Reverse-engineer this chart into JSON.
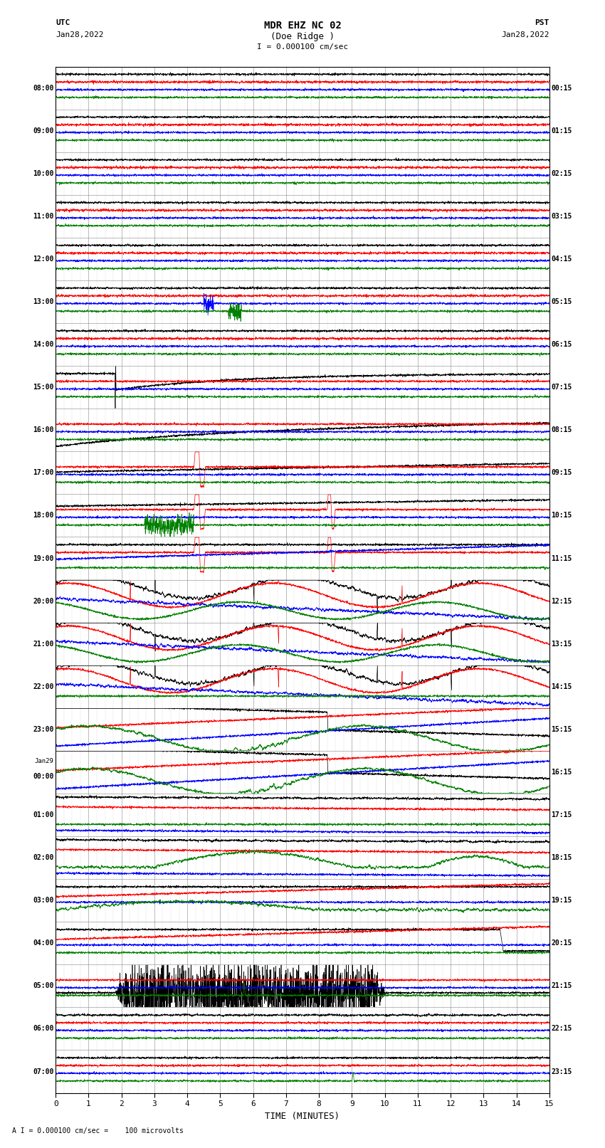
{
  "title_line1": "MDR EHZ NC 02",
  "title_line2": "(Doe Ridge )",
  "scale_label": "I = 0.000100 cm/sec",
  "bottom_label": "A I = 0.000100 cm/sec =    100 microvolts",
  "utc_label_line1": "UTC",
  "utc_label_line2": "Jan28,2022",
  "pst_label_line1": "PST",
  "pst_label_line2": "Jan28,2022",
  "xlabel": "TIME (MINUTES)",
  "left_times": [
    "08:00",
    "09:00",
    "10:00",
    "11:00",
    "12:00",
    "13:00",
    "14:00",
    "15:00",
    "16:00",
    "17:00",
    "18:00",
    "19:00",
    "20:00",
    "21:00",
    "22:00",
    "23:00",
    "Jan29\n00:00",
    "01:00",
    "02:00",
    "03:00",
    "04:00",
    "05:00",
    "06:00",
    "07:00"
  ],
  "right_times": [
    "00:15",
    "01:15",
    "02:15",
    "03:15",
    "04:15",
    "05:15",
    "06:15",
    "07:15",
    "08:15",
    "09:15",
    "10:15",
    "11:15",
    "12:15",
    "13:15",
    "14:15",
    "15:15",
    "16:15",
    "17:15",
    "18:15",
    "19:15",
    "20:15",
    "21:15",
    "22:15",
    "23:15"
  ],
  "n_rows": 24,
  "n_minutes": 15,
  "bg_color": "#ffffff",
  "grid_color": "#888888",
  "trace_colors": [
    "black",
    "red",
    "blue",
    "green"
  ],
  "fig_width": 8.5,
  "fig_height": 16.13,
  "dpi": 100
}
